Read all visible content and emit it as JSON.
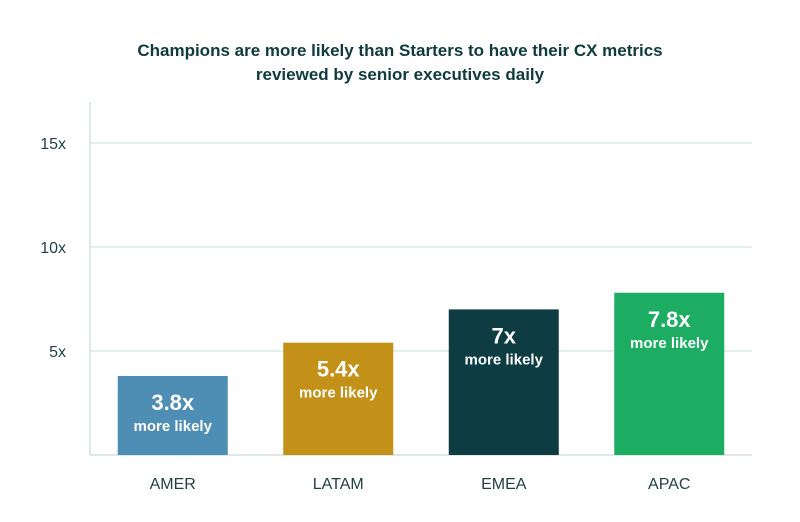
{
  "chart_data": {
    "type": "bar",
    "title_lines": [
      "Champions are more likely than Starters to have their CX metrics",
      "reviewed by senior executives daily"
    ],
    "categories": [
      "AMER",
      "LATAM",
      "EMEA",
      "APAC"
    ],
    "values": [
      3.8,
      5.4,
      7,
      7.8
    ],
    "value_labels": [
      "3.8x",
      "5.4x",
      "7x",
      "7.8x"
    ],
    "value_sublabel": "more likely",
    "colors": [
      "#4e8db4",
      "#c39018",
      "#0d3c43",
      "#1cad62"
    ],
    "y_ticks": [
      5,
      10,
      15
    ],
    "y_tick_labels": [
      "5x",
      "10x",
      "15x"
    ],
    "ylim": [
      0,
      17
    ],
    "xlabel": "",
    "ylabel": "",
    "grid": true
  }
}
